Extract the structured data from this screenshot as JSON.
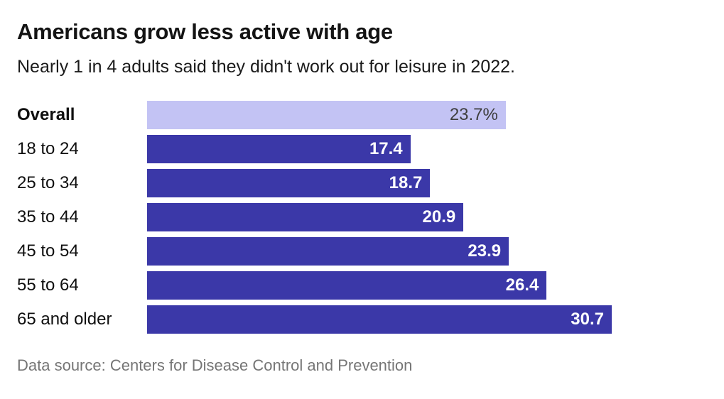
{
  "header": {
    "title": "Americans grow less active with age",
    "subtitle": "Nearly 1 in 4 adults said they didn't work out for leisure in 2022."
  },
  "footer": {
    "source": "Data source: Centers for Disease Control and Prevention"
  },
  "colors": {
    "bar": "#3b38a8",
    "highlight_bar": "#c3c3f4",
    "value_text_on_dark": "#ffffff",
    "value_text_on_light": "#3f3f3f",
    "title_text": "#141414",
    "source_text": "#757575"
  },
  "chart_data": {
    "type": "bar",
    "orientation": "horizontal",
    "title": "Americans grow less active with age",
    "subtitle": "Nearly 1 in 4 adults said they didn't work out for leisure in 2022.",
    "categories": [
      "Overall",
      "18 to 24",
      "25 to 34",
      "35 to 44",
      "45 to 54",
      "55 to 64",
      "65 and older"
    ],
    "values": [
      23.7,
      17.4,
      18.7,
      20.9,
      23.9,
      26.4,
      30.7
    ],
    "value_labels": [
      "23.7%",
      "17.4",
      "18.7",
      "20.9",
      "23.9",
      "26.4",
      "30.7"
    ],
    "unit": "%",
    "highlight_index": 0,
    "xlim": [
      0,
      30.7
    ],
    "grid": false,
    "legend": false,
    "value_label_position": "inside-end"
  }
}
